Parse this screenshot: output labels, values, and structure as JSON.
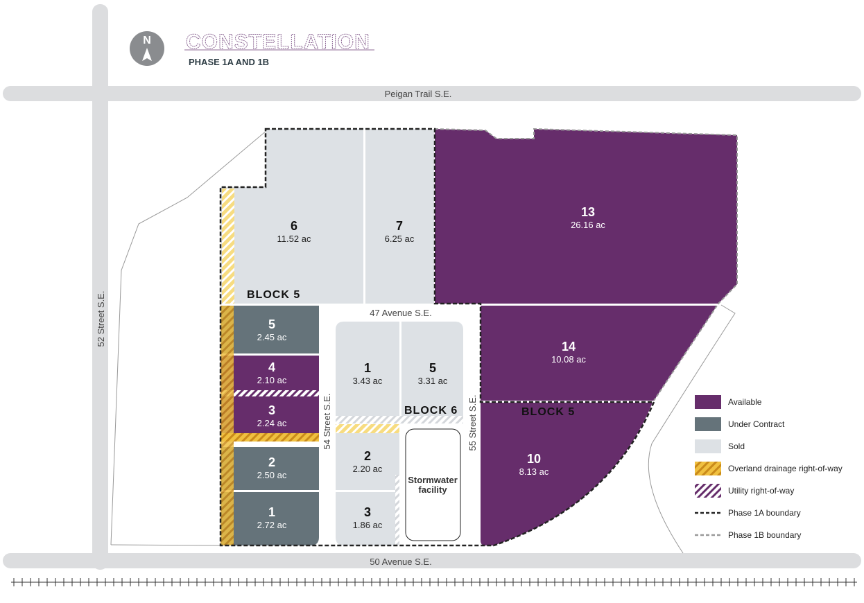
{
  "header": {
    "title": "CONSTELLATION",
    "subtitle": "PHASE 1A AND 1B",
    "north_label": "N"
  },
  "roads": {
    "peigan": "Peigan Trail S.E.",
    "st52": "52 Street S.E.",
    "av50": "50 Avenue S.E.",
    "av47": "47 Avenue S.E.",
    "st54": "54 Street S.E.",
    "st55": "55 Street S.E."
  },
  "colors": {
    "available": "#662d6b",
    "under_contract": "#65737a",
    "sold": "#dde1e5",
    "drainage": "#f0c040",
    "road": "#dcdddf"
  },
  "blocks": {
    "block5_top": "BLOCK 5",
    "block5_right": "BLOCK 5",
    "block6": "BLOCK 6"
  },
  "lots": {
    "b5_6": {
      "num": "6",
      "area": "11.52 ac",
      "status": "sold"
    },
    "b5_7": {
      "num": "7",
      "area": "6.25 ac",
      "status": "sold"
    },
    "b5_13": {
      "num": "13",
      "area": "26.16 ac",
      "status": "available"
    },
    "b5_14": {
      "num": "14",
      "area": "10.08 ac",
      "status": "available"
    },
    "b5_10": {
      "num": "10",
      "area": "8.13 ac",
      "status": "available"
    },
    "b5_5": {
      "num": "5",
      "area": "2.45 ac",
      "status": "under_contract"
    },
    "b5_4": {
      "num": "4",
      "area": "2.10 ac",
      "status": "available"
    },
    "b5_3": {
      "num": "3",
      "area": "2.24 ac",
      "status": "available"
    },
    "b5_2": {
      "num": "2",
      "area": "2.50 ac",
      "status": "under_contract"
    },
    "b5_1": {
      "num": "1",
      "area": "2.72 ac",
      "status": "under_contract"
    },
    "b6_1": {
      "num": "1",
      "area": "3.43 ac",
      "status": "sold"
    },
    "b6_5": {
      "num": "5",
      "area": "3.31 ac",
      "status": "sold"
    },
    "b6_2": {
      "num": "2",
      "area": "2.20 ac",
      "status": "sold"
    },
    "b6_3": {
      "num": "3",
      "area": "1.86 ac",
      "status": "sold"
    }
  },
  "stormwater": {
    "line1": "Stormwater",
    "line2": "facility"
  },
  "legend": [
    {
      "label": "Available"
    },
    {
      "label": "Under Contract"
    },
    {
      "label": "Sold"
    },
    {
      "label": "Overland drainage right-of-way"
    },
    {
      "label": "Utility right-of-way"
    },
    {
      "label": "Phase 1A boundary"
    },
    {
      "label": "Phase 1B boundary"
    }
  ]
}
